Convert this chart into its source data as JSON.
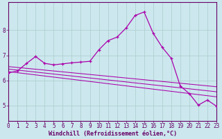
{
  "xlabel": "Windchill (Refroidissement éolien,°C)",
  "bg_color": "#cce8ee",
  "line_color": "#aa00aa",
  "grid_color": "#aacccc",
  "axis_color": "#660066",
  "x_ticks": [
    0,
    1,
    2,
    3,
    4,
    5,
    6,
    7,
    8,
    9,
    10,
    11,
    12,
    13,
    14,
    15,
    16,
    17,
    18,
    19,
    20,
    21,
    22,
    23
  ],
  "y_ticks": [
    5,
    6,
    7,
    8
  ],
  "ylim": [
    4.4,
    9.1
  ],
  "xlim": [
    0,
    23
  ],
  "main_x": [
    0,
    1,
    2,
    3,
    4,
    5,
    6,
    7,
    8,
    9,
    10,
    11,
    12,
    13,
    14,
    15,
    16,
    17,
    18,
    19,
    20,
    21,
    22,
    23
  ],
  "main_y": [
    6.3,
    6.38,
    6.68,
    6.95,
    6.68,
    6.62,
    6.66,
    6.7,
    6.73,
    6.76,
    7.22,
    7.58,
    7.72,
    8.08,
    8.58,
    8.72,
    7.88,
    7.32,
    6.88,
    5.78,
    5.48,
    5.02,
    5.22,
    4.98
  ],
  "trend1_x": [
    0,
    23
  ],
  "trend1_y": [
    6.55,
    5.75
  ],
  "trend2_x": [
    0,
    23
  ],
  "trend2_y": [
    6.45,
    5.55
  ],
  "trend3_x": [
    0,
    23
  ],
  "trend3_y": [
    6.35,
    5.35
  ],
  "font_color": "#660066",
  "tick_fontsize": 5.5,
  "label_fontsize": 6.0
}
